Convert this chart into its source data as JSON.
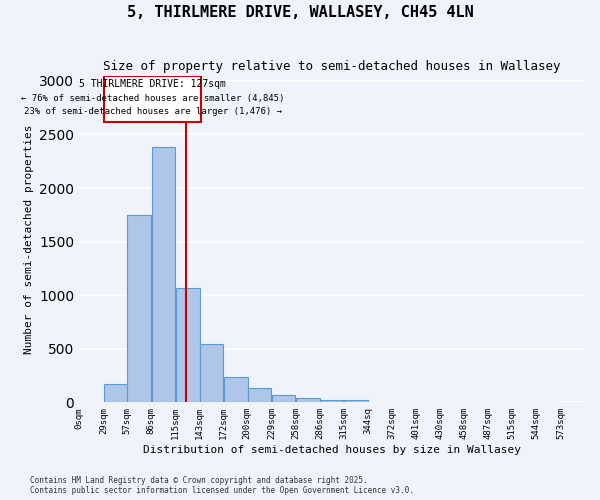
{
  "title": "5, THIRLMERE DRIVE, WALLASEY, CH45 4LN",
  "subtitle": "Size of property relative to semi-detached houses in Wallasey",
  "xlabel": "Distribution of semi-detached houses by size in Wallasey",
  "ylabel": "Number of semi-detached properties",
  "property_label": "5 THIRLMERE DRIVE: 127sqm",
  "pct_smaller": "76% of semi-detached houses are smaller (4,845)",
  "pct_larger": "23% of semi-detached houses are larger (1,476)",
  "property_size": 127,
  "bin_edges": [
    0,
    29,
    57,
    86,
    115,
    143,
    172,
    200,
    229,
    258,
    286,
    315,
    344,
    372,
    401,
    430,
    458,
    487,
    515,
    544,
    573
  ],
  "bar_values": [
    0,
    175,
    1750,
    2380,
    1070,
    540,
    240,
    130,
    70,
    40,
    25,
    20,
    5,
    2,
    1,
    0,
    0,
    0,
    0,
    0
  ],
  "bar_color": "#aec6e8",
  "bar_edge_color": "#5b9bd5",
  "vline_color": "#cc0000",
  "vline_x": 127,
  "annotation_box_color": "#cc0000",
  "background_color": "#f0f4fa",
  "grid_color": "#ffffff",
  "footer_line1": "Contains HM Land Registry data © Crown copyright and database right 2025.",
  "footer_line2": "Contains public sector information licensed under the Open Government Licence v3.0.",
  "ylim": [
    0,
    3050
  ],
  "yticks": [
    0,
    500,
    1000,
    1500,
    2000,
    2500,
    3000
  ],
  "bin_labels": [
    "0sqm",
    "29sqm",
    "57sqm",
    "86sqm",
    "115sqm",
    "143sqm",
    "172sqm",
    "200sqm",
    "229sqm",
    "258sqm",
    "286sqm",
    "315sqm",
    "344sq",
    "372sqm",
    "401sqm",
    "430sqm",
    "458sqm",
    "487sqm",
    "515sqm",
    "544sqm",
    "573sqm"
  ]
}
